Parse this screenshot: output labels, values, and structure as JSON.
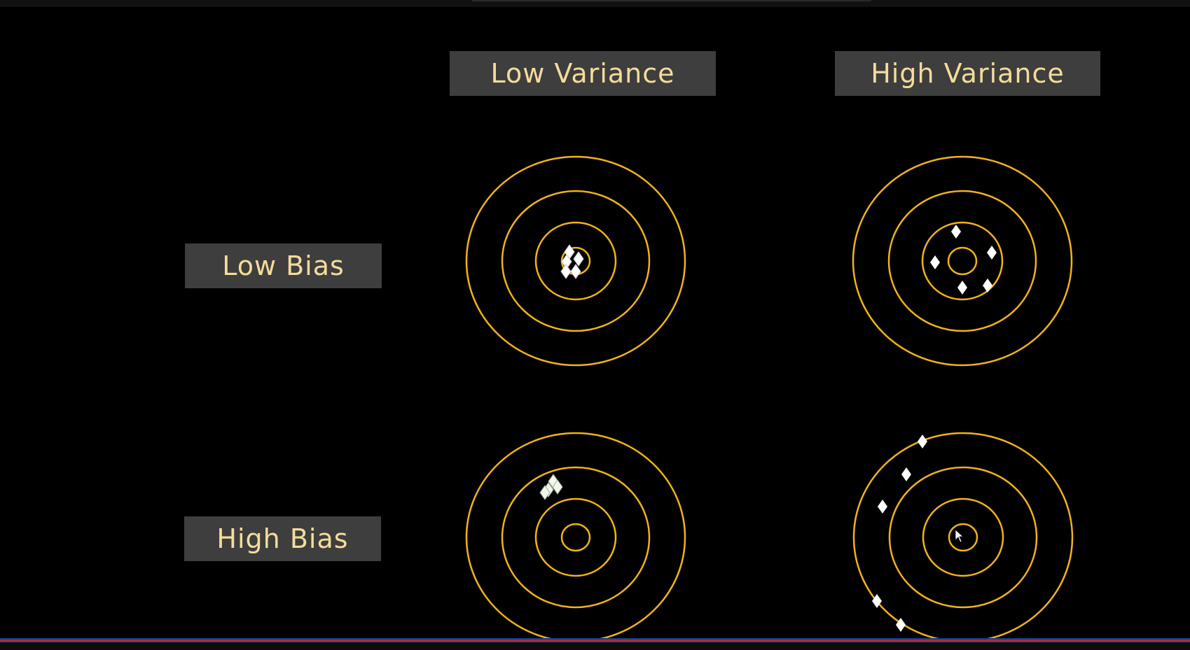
{
  "headers": {
    "low_variance": "Low Variance",
    "high_variance": "High Variance"
  },
  "rows": {
    "low_bias": "Low Bias",
    "high_bias": "High Bias"
  },
  "colors": {
    "ring": "#f2b21a",
    "label_bg": "#3e3e3e",
    "label_text": "#f5dc9a",
    "marker": "#ffffff"
  },
  "icons": {
    "marker": "diamond",
    "cursor": "mouse-pointer"
  }
}
